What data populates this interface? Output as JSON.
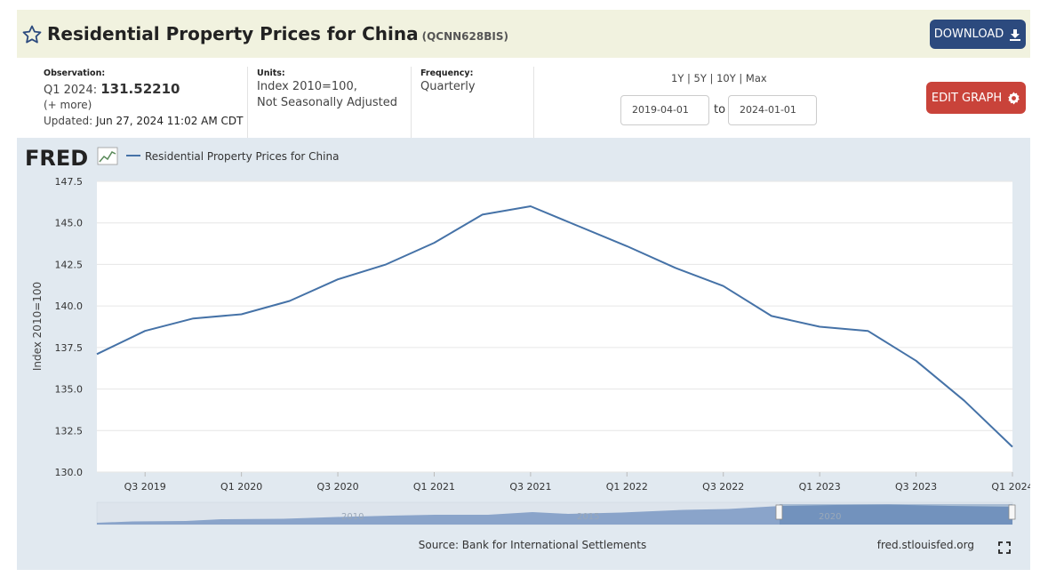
{
  "header": {
    "title": "Residential Property Prices for China",
    "series_id": "(QCNN628BIS)",
    "download_label": "DOWNLOAD"
  },
  "observation": {
    "label": "Observation:",
    "period": "Q1 2024:",
    "value": "131.52210",
    "more": "(+ more)",
    "updated_label": "Updated:",
    "updated_value": "Jun 27, 2024 11:02 AM CDT"
  },
  "units": {
    "label": "Units:",
    "line1": "Index 2010=100,",
    "line2": "Not Seasonally Adjusted"
  },
  "frequency": {
    "label": "Frequency:",
    "value": "Quarterly"
  },
  "range": {
    "links": [
      "1Y",
      "5Y",
      "10Y",
      "Max"
    ],
    "separator": "|",
    "start": "2019-04-01",
    "to_label": "to",
    "end": "2024-01-01"
  },
  "edit_label": "EDIT GRAPH",
  "chart_data": {
    "type": "line",
    "brand": "FRED",
    "ylabel": "Index 2010=100",
    "ylim": [
      130.0,
      147.5
    ],
    "yticks": [
      "147.5",
      "145.0",
      "142.5",
      "140.0",
      "137.5",
      "135.0",
      "132.5",
      "130.0"
    ],
    "x": [
      "Q2 2019",
      "Q3 2019",
      "Q4 2019",
      "Q1 2020",
      "Q2 2020",
      "Q3 2020",
      "Q4 2020",
      "Q1 2021",
      "Q2 2021",
      "Q3 2021",
      "Q4 2021",
      "Q1 2022",
      "Q2 2022",
      "Q3 2022",
      "Q4 2022",
      "Q1 2023",
      "Q2 2023",
      "Q3 2023",
      "Q4 2023",
      "Q1 2024"
    ],
    "xticks": [
      "Q3 2019",
      "Q1 2020",
      "Q3 2020",
      "Q1 2021",
      "Q3 2021",
      "Q1 2022",
      "Q3 2022",
      "Q1 2023",
      "Q3 2023",
      "Q1 2024"
    ],
    "series": [
      {
        "name": "Residential Property Prices for China",
        "color": "#4572a7",
        "values": [
          137.1,
          138.5,
          139.25,
          139.5,
          140.3,
          141.6,
          142.5,
          143.8,
          145.5,
          146.0,
          144.8,
          143.6,
          142.3,
          141.2,
          139.4,
          138.75,
          138.5,
          136.7,
          134.3,
          131.52
        ]
      }
    ],
    "grid": true,
    "legend_position": "top-left",
    "navigator_labels": [
      "2010",
      "2015",
      "2020"
    ],
    "source": "Source: Bank for International Settlements",
    "site": "fred.stlouisfed.org"
  }
}
